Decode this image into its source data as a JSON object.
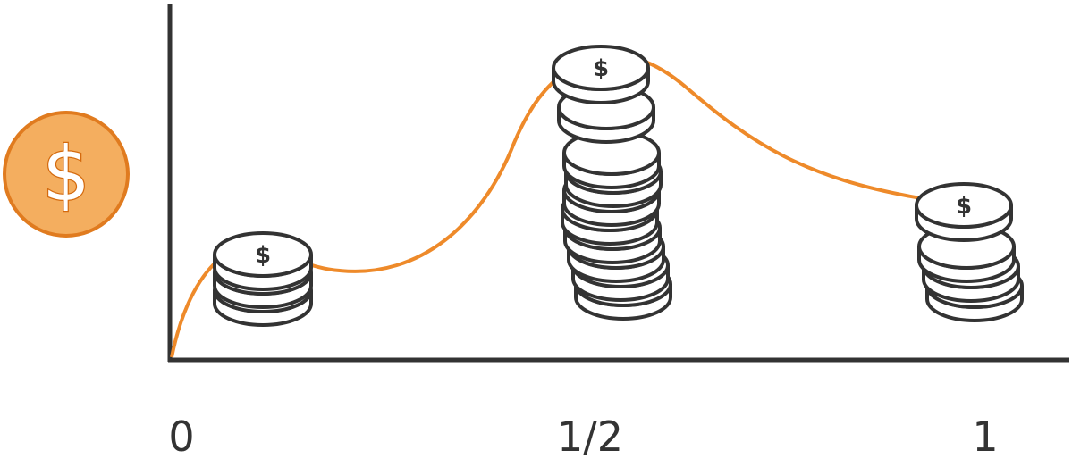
{
  "axis": {
    "ticks": [
      "0",
      "1/2",
      "1"
    ]
  },
  "curve": {
    "color": "#ee8a2a"
  },
  "axis_color": "#333333",
  "currency_icon": {
    "symbol": "$",
    "fill": "#f4ae5f",
    "stroke": "#e07b1f",
    "semantic": "dollar-coin-icon"
  },
  "coin_stacks": [
    {
      "name": "coin-stack-low",
      "position": "0.25",
      "coin_count": 3,
      "symbol": "$"
    },
    {
      "name": "coin-stack-peak",
      "position": "1/2",
      "coin_count": 10,
      "symbol": "$"
    },
    {
      "name": "coin-stack-end",
      "position": "1",
      "coin_count": 4,
      "symbol": "$"
    }
  ]
}
